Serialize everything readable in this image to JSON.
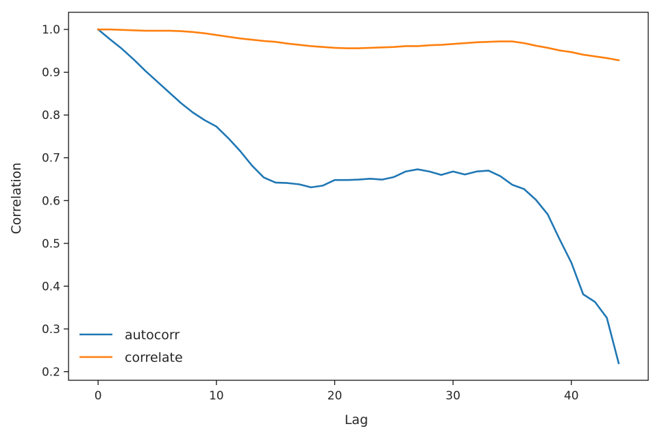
{
  "chart_data": {
    "type": "line",
    "title": "",
    "xlabel": "Lag",
    "ylabel": "Correlation",
    "xlim": [
      -2.5,
      46.5
    ],
    "ylim": [
      0.18,
      1.04
    ],
    "xticks": [
      0,
      10,
      20,
      30,
      40
    ],
    "yticks": [
      0.2,
      0.3,
      0.4,
      0.5,
      0.6,
      0.7,
      0.8,
      0.9,
      1.0
    ],
    "grid": false,
    "legend_position": "lower-left",
    "x": [
      0,
      1,
      2,
      3,
      4,
      5,
      6,
      7,
      8,
      9,
      10,
      11,
      12,
      13,
      14,
      15,
      16,
      17,
      18,
      19,
      20,
      21,
      22,
      23,
      24,
      25,
      26,
      27,
      28,
      29,
      30,
      31,
      32,
      33,
      34,
      35,
      36,
      37,
      38,
      39,
      40,
      41,
      42,
      43,
      44
    ],
    "series": [
      {
        "name": "autocorr",
        "color": "#1f77b4",
        "values": [
          1.0,
          0.977,
          0.955,
          0.93,
          0.903,
          0.878,
          0.853,
          0.828,
          0.806,
          0.788,
          0.773,
          0.746,
          0.716,
          0.682,
          0.654,
          0.642,
          0.641,
          0.638,
          0.631,
          0.635,
          0.648,
          0.648,
          0.649,
          0.651,
          0.649,
          0.655,
          0.668,
          0.673,
          0.668,
          0.66,
          0.668,
          0.661,
          0.668,
          0.67,
          0.657,
          0.637,
          0.627,
          0.602,
          0.568,
          0.51,
          0.455,
          0.381,
          0.363,
          0.326,
          0.22
        ]
      },
      {
        "name": "correlate",
        "color": "#ff7f0e",
        "values": [
          1.0,
          1.0,
          0.999,
          0.998,
          0.997,
          0.997,
          0.997,
          0.996,
          0.994,
          0.991,
          0.987,
          0.983,
          0.979,
          0.976,
          0.973,
          0.971,
          0.967,
          0.964,
          0.961,
          0.959,
          0.957,
          0.956,
          0.956,
          0.957,
          0.958,
          0.959,
          0.961,
          0.961,
          0.963,
          0.964,
          0.966,
          0.968,
          0.97,
          0.971,
          0.972,
          0.972,
          0.968,
          0.962,
          0.957,
          0.951,
          0.947,
          0.941,
          0.937,
          0.933,
          0.928
        ]
      }
    ]
  }
}
